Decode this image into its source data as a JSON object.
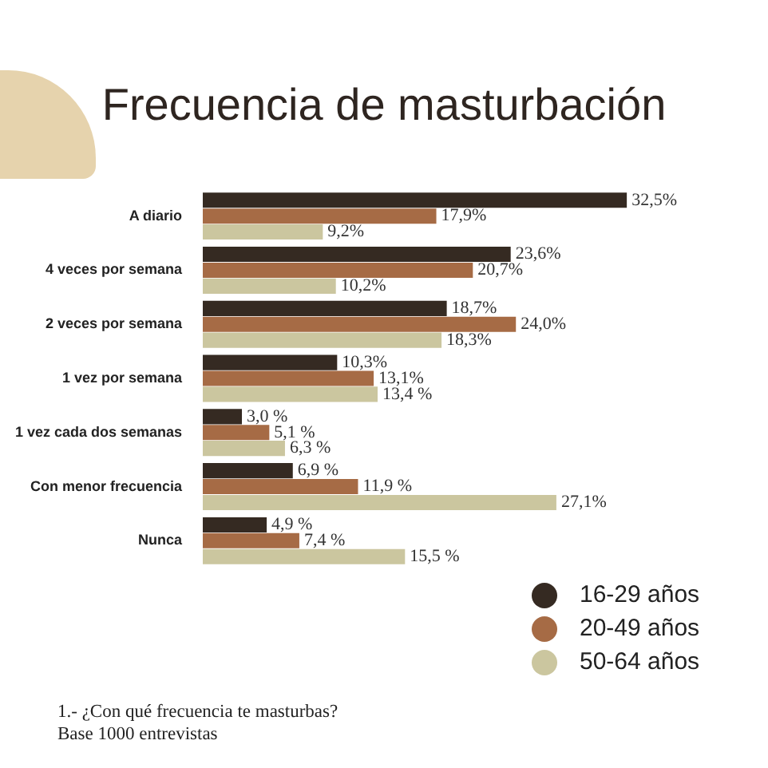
{
  "chart_data": {
    "type": "bar",
    "orientation": "horizontal",
    "title": "Frecuencia de masturbación",
    "categories": [
      "A diario",
      "4 veces por semana",
      "2 veces por semana",
      "1 vez por semana",
      "1 vez cada dos semanas",
      "Con menor frecuencia",
      "Nunca"
    ],
    "series": [
      {
        "name": "16-29 años",
        "color": "#352a22",
        "values": [
          32.5,
          23.6,
          18.7,
          10.3,
          3.0,
          6.9,
          4.9
        ],
        "value_labels": [
          "32,5%",
          "23,6%",
          "18,7%",
          "10,3%",
          "3,0 %",
          "6,9 %",
          "4,9 %"
        ]
      },
      {
        "name": "20-49 años",
        "color": "#a66b45",
        "values": [
          17.9,
          20.7,
          24.0,
          13.1,
          5.1,
          11.9,
          7.4
        ],
        "value_labels": [
          "17,9%",
          "20,7%",
          "24,0%",
          "13,1%",
          "5,1 %",
          "11,9 %",
          "7,4 %"
        ]
      },
      {
        "name": "50-64 años",
        "color": "#cbc69f",
        "values": [
          9.2,
          10.2,
          18.3,
          13.4,
          6.3,
          27.1,
          15.5
        ],
        "value_labels": [
          "9,2%",
          "10,2%",
          "18,3%",
          "13,4 %",
          "6,3 %",
          "27,1%",
          "15,5 %"
        ]
      }
    ],
    "tick_labels": "y",
    "legend": "bottom right",
    "annotations": [
      "1.- ¿Con qué frecuencia te masturbas?",
      "Base 1000 entrevistas"
    ]
  }
}
